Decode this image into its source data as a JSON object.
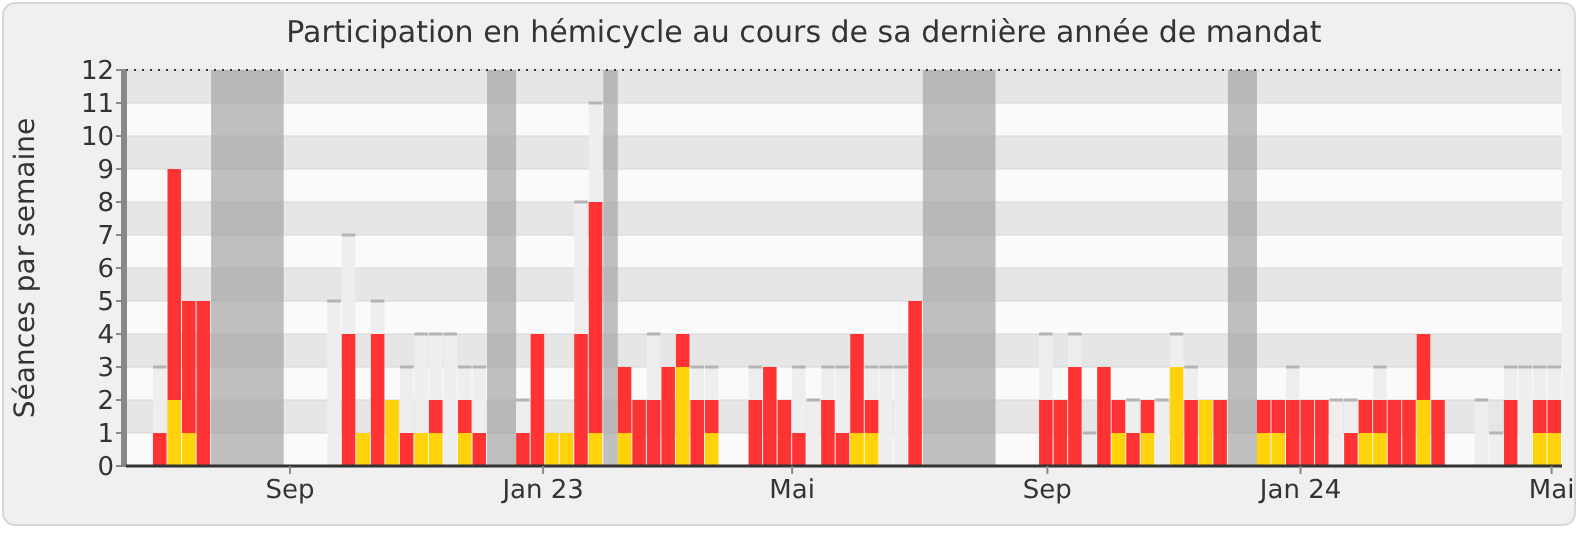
{
  "chart_data": {
    "type": "bar",
    "stacked": true,
    "title": "Participation en hémicycle au cours de sa dernière année de mandat",
    "ylabel": "Séances par semaine",
    "x": [
      "2022-06-27",
      "2022-07-04",
      "2022-07-11",
      "2022-07-18",
      "2022-07-25",
      "2022-08-01",
      "2022-08-08",
      "2022-08-15",
      "2022-08-22",
      "2022-08-29",
      "2022-09-05",
      "2022-09-12",
      "2022-09-19",
      "2022-09-26",
      "2022-10-03",
      "2022-10-10",
      "2022-10-17",
      "2022-10-24",
      "2022-10-31",
      "2022-11-07",
      "2022-11-14",
      "2022-11-21",
      "2022-11-28",
      "2022-12-05",
      "2022-12-12",
      "2022-12-19",
      "2022-12-26",
      "2023-01-02",
      "2023-01-09",
      "2023-01-16",
      "2023-01-23",
      "2023-01-30",
      "2023-02-06",
      "2023-02-13",
      "2023-02-20",
      "2023-02-27",
      "2023-03-06",
      "2023-03-13",
      "2023-03-20",
      "2023-03-27",
      "2023-04-03",
      "2023-04-10",
      "2023-04-17",
      "2023-04-24",
      "2023-05-01",
      "2023-05-08",
      "2023-05-15",
      "2023-05-22",
      "2023-05-29",
      "2023-06-05",
      "2023-06-12",
      "2023-06-19",
      "2023-06-26",
      "2023-07-03",
      "2023-07-10",
      "2023-07-17",
      "2023-07-24",
      "2023-07-31",
      "2023-08-07",
      "2023-08-14",
      "2023-08-21",
      "2023-08-28",
      "2023-09-04",
      "2023-09-11",
      "2023-09-18",
      "2023-09-25",
      "2023-10-02",
      "2023-10-09",
      "2023-10-16",
      "2023-10-23",
      "2023-10-30",
      "2023-11-06",
      "2023-11-13",
      "2023-11-20",
      "2023-11-27",
      "2023-12-04",
      "2023-12-11",
      "2023-12-18",
      "2023-12-25",
      "2024-01-01",
      "2024-01-08",
      "2024-01-15",
      "2024-01-22",
      "2024-01-29",
      "2024-02-05",
      "2024-02-12",
      "2024-02-19",
      "2024-02-26",
      "2024-03-04",
      "2024-03-11",
      "2024-03-18",
      "2024-03-25",
      "2024-04-01",
      "2024-04-08",
      "2024-04-15",
      "2024-04-22",
      "2024-04-29"
    ],
    "series": [
      {
        "color": "#ffd20a",
        "values": [
          null,
          2,
          1,
          null,
          null,
          null,
          null,
          null,
          null,
          null,
          null,
          null,
          null,
          null,
          1,
          null,
          2,
          null,
          1,
          1,
          null,
          1,
          null,
          null,
          null,
          null,
          null,
          1,
          1,
          null,
          1,
          null,
          1,
          null,
          null,
          null,
          3,
          null,
          1,
          null,
          null,
          null,
          null,
          null,
          null,
          null,
          null,
          null,
          1,
          1,
          null,
          null,
          null,
          null,
          null,
          null,
          null,
          null,
          null,
          null,
          null,
          null,
          null,
          null,
          null,
          null,
          1,
          null,
          1,
          null,
          3,
          null,
          2,
          null,
          null,
          null,
          1,
          1,
          null,
          null,
          null,
          null,
          null,
          1,
          1,
          null,
          null,
          2,
          null,
          null,
          null,
          null,
          null,
          null,
          null,
          1,
          1
        ]
      },
      {
        "color": "#ff3333",
        "values": [
          1,
          7,
          4,
          5,
          null,
          null,
          null,
          null,
          null,
          null,
          null,
          null,
          null,
          4,
          null,
          4,
          null,
          1,
          null,
          1,
          null,
          1,
          1,
          null,
          null,
          1,
          4,
          null,
          null,
          4,
          7,
          null,
          2,
          2,
          2,
          3,
          1,
          2,
          1,
          null,
          null,
          2,
          3,
          2,
          1,
          null,
          2,
          1,
          3,
          1,
          null,
          null,
          5,
          null,
          null,
          null,
          null,
          null,
          null,
          null,
          null,
          2,
          2,
          3,
          null,
          3,
          1,
          1,
          1,
          null,
          null,
          2,
          null,
          2,
          null,
          null,
          1,
          1,
          2,
          2,
          2,
          null,
          1,
          1,
          1,
          2,
          2,
          2,
          2,
          null,
          null,
          null,
          null,
          2,
          null,
          1,
          1
        ]
      },
      {
        "color": "#eeeeee",
        "values": [
          2,
          null,
          null,
          null,
          null,
          null,
          null,
          null,
          null,
          null,
          null,
          null,
          5,
          3,
          null,
          1,
          null,
          2,
          3,
          2,
          4,
          1,
          2,
          null,
          null,
          1,
          null,
          null,
          null,
          4,
          3,
          null,
          null,
          null,
          2,
          null,
          null,
          1,
          1,
          null,
          null,
          1,
          null,
          null,
          2,
          2,
          1,
          2,
          null,
          1,
          3,
          3,
          null,
          null,
          null,
          null,
          null,
          null,
          null,
          null,
          null,
          2,
          null,
          1,
          1,
          null,
          null,
          1,
          null,
          2,
          1,
          1,
          null,
          null,
          null,
          null,
          null,
          null,
          1,
          null,
          null,
          2,
          1,
          null,
          1,
          null,
          null,
          null,
          null,
          null,
          null,
          2,
          1,
          1,
          3,
          1,
          1
        ]
      }
    ],
    "xlim": [
      "2022-06-14",
      "2024-05-06"
    ],
    "xticks": [
      {
        "value": "2022-09-01",
        "label": "Sep"
      },
      {
        "value": "2023-01-01",
        "label": "Jan 23"
      },
      {
        "value": "2023-05-01",
        "label": "Mai"
      },
      {
        "value": "2023-09-01",
        "label": "Sep"
      },
      {
        "value": "2024-01-01",
        "label": "Jan 24"
      },
      {
        "value": "2024-05-01",
        "label": "Mai"
      }
    ],
    "ylim": [
      0,
      12
    ],
    "yticks": [
      0,
      1,
      2,
      3,
      4,
      5,
      6,
      7,
      8,
      9,
      10,
      11,
      12
    ],
    "grid": "y",
    "bands": [
      {
        "axis": "x",
        "from": "2022-07-25",
        "to": "2022-08-29",
        "color": "#a0a0a0"
      },
      {
        "axis": "x",
        "from": "2022-12-05",
        "to": "2022-12-19",
        "color": "#a0a0a0"
      },
      {
        "axis": "x",
        "from": "2023-01-30",
        "to": "2023-02-06",
        "color": "#a0a0a0"
      },
      {
        "axis": "x",
        "from": "2023-07-03",
        "to": "2023-08-07",
        "color": "#a0a0a0"
      },
      {
        "axis": "x",
        "from": "2023-11-27",
        "to": "2023-12-11",
        "color": "#a0a0a0"
      }
    ]
  }
}
